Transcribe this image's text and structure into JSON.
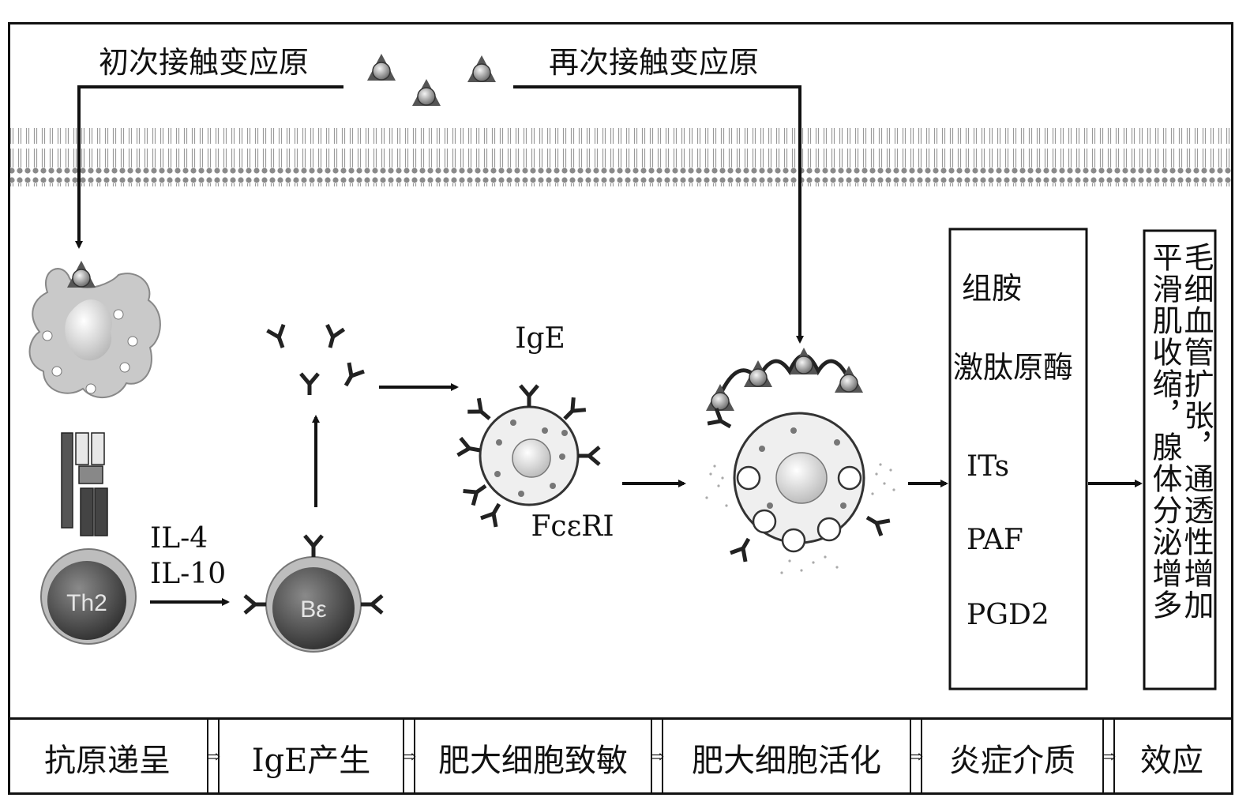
{
  "top": {
    "first_contact": "初次接触变应原",
    "second_contact": "再次接触变应原"
  },
  "cells": {
    "th2": "Th2",
    "b_cell": "Bε"
  },
  "labels": {
    "il4": "IL-4",
    "il10": "IL-10",
    "ige": "IgE",
    "fceri": "FcεRI"
  },
  "mediators": [
    "组胺",
    "激肽原酶",
    "ITs",
    "PAF",
    "PGD2"
  ],
  "effects": {
    "col_right": "毛细血管扩张，通透性增加",
    "col_left": "平滑肌收缩，腺体分泌增多"
  },
  "stages": [
    "抗原递呈",
    "IgE产生",
    "肥大细胞致敏",
    "肥大细胞活化",
    "炎症介质",
    "效应"
  ],
  "colors": {
    "line": "#111111",
    "membrane": "#8a8a8a",
    "cell_dark": "#5a5a5a",
    "cell_light": "#d9d9d9"
  }
}
